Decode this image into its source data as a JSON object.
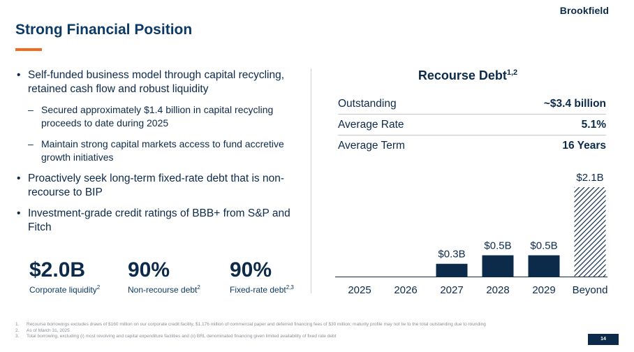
{
  "brand": "Brookfield",
  "title": "Strong Financial Position",
  "bullets": [
    "Self-funded business model through capital recycling, retained cash flow and robust liquidity",
    "Proactively seek long-term fixed-rate debt that is non-recourse to BIP",
    "Investment-grade credit ratings of BBB+ from S&P and Fitch"
  ],
  "sub_bullets": [
    "Secured approximately $1.4 billion in capital recycling proceeds to date during 2025",
    "Maintain strong capital markets access to fund accretive growth initiatives"
  ],
  "dash": "–",
  "kpis": [
    {
      "value": "$2.0B",
      "label": "Corporate liquidity",
      "sup": "2"
    },
    {
      "value": "90%",
      "label": "Non-recourse debt",
      "sup": "2"
    },
    {
      "value": "90%",
      "label": "Fixed-rate debt",
      "sup": "2,3"
    }
  ],
  "recourse": {
    "title": "Recourse Debt",
    "title_sup": "1,2",
    "rows": [
      {
        "label": "Outstanding",
        "value": "~$3.4 billion"
      },
      {
        "label": "Average Rate",
        "value": "5.1%"
      },
      {
        "label": "Average Term",
        "value": "16 Years"
      }
    ]
  },
  "chart_data": {
    "type": "bar",
    "categories": [
      "2025",
      "2026",
      "2027",
      "2028",
      "2029",
      "Beyond"
    ],
    "values": [
      0,
      0,
      0.3,
      0.5,
      0.5,
      2.1
    ],
    "data_labels": [
      "",
      "",
      "$0.3B",
      "$0.5B",
      "$0.5B",
      "$2.1B"
    ],
    "ylim": [
      0,
      2.1
    ],
    "color": "#0c2a4a",
    "hatched_category": "Beyond"
  },
  "footnotes": [
    {
      "num": "1.",
      "text": "Recourse borrowings excludes draws of $160 million on our corporate credit facility, $1,176 million of commercial paper and deferred financing fees of $30 million; maturity profile may not tie to the total outstanding due to rounding"
    },
    {
      "num": "2.",
      "text": "As of March 31, 2025"
    },
    {
      "num": "3.",
      "text": "Total borrowing, excluding (i) most revolving and capital expenditure facilities and (ii) BRL denominated financing given limited availability of fixed rate debt"
    }
  ],
  "page_number": "14",
  "colors": {
    "navy": "#0c2a4a",
    "accent": "#f26b21"
  }
}
